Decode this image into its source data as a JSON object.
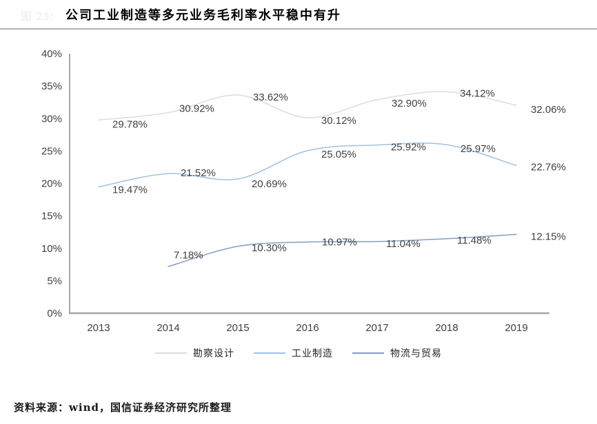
{
  "figure": {
    "faint_label": "图 23:",
    "source": "资料来源：wind，国信证券经济研究所整理"
  },
  "chart_data": {
    "type": "line",
    "title": "公司工业制造等多元业务毛利率水平稳中有升",
    "categories": [
      "2013",
      "2014",
      "2015",
      "2016",
      "2017",
      "2018",
      "2019"
    ],
    "xlabel": "",
    "ylabel": "",
    "ylim": [
      0,
      40
    ],
    "y_tick_step": 5,
    "y_ticks": [
      "0%",
      "5%",
      "10%",
      "15%",
      "20%",
      "25%",
      "30%",
      "35%",
      "40%"
    ],
    "grid": false,
    "legend_position": "bottom",
    "axis_color": "#a6a6a6",
    "label_color": "#404040",
    "series": [
      {
        "name": "勘察设计",
        "color": "#d8dce2",
        "values": [
          29.78,
          30.92,
          33.62,
          30.12,
          32.9,
          34.12,
          32.06
        ],
        "labels": [
          "29.78%",
          "30.92%",
          "33.62%",
          "30.12%",
          "32.90%",
          "34.12%",
          "32.06%"
        ],
        "label_dx": [
          20,
          16,
          22,
          20,
          21,
          19,
          21
        ],
        "label_dy": [
          11,
          -1,
          8,
          9,
          10,
          7,
          11
        ]
      },
      {
        "name": "工业制造",
        "color": "#9cc2e5",
        "values": [
          19.47,
          21.52,
          20.69,
          25.05,
          25.92,
          25.97,
          22.76
        ],
        "labels": [
          "19.47%",
          "21.52%",
          "20.69%",
          "25.05%",
          "25.92%",
          "25.97%",
          "22.76%"
        ],
        "label_dx": [
          20,
          18,
          20,
          20,
          20,
          20,
          21
        ],
        "label_dy": [
          9,
          4,
          12,
          10,
          8,
          11,
          7
        ]
      },
      {
        "name": "物流与贸易",
        "color": "#7f9fc6",
        "values": [
          null,
          7.18,
          10.3,
          10.97,
          11.04,
          11.48,
          12.15
        ],
        "labels": [
          "",
          "7.18%",
          "10.30%",
          "10.97%",
          "11.04%",
          "11.48%",
          "12.15%"
        ],
        "label_dx": [
          0,
          8,
          20,
          21,
          13,
          15,
          21
        ],
        "label_dy": [
          0,
          -12,
          7,
          5,
          8,
          7,
          8
        ]
      }
    ]
  }
}
